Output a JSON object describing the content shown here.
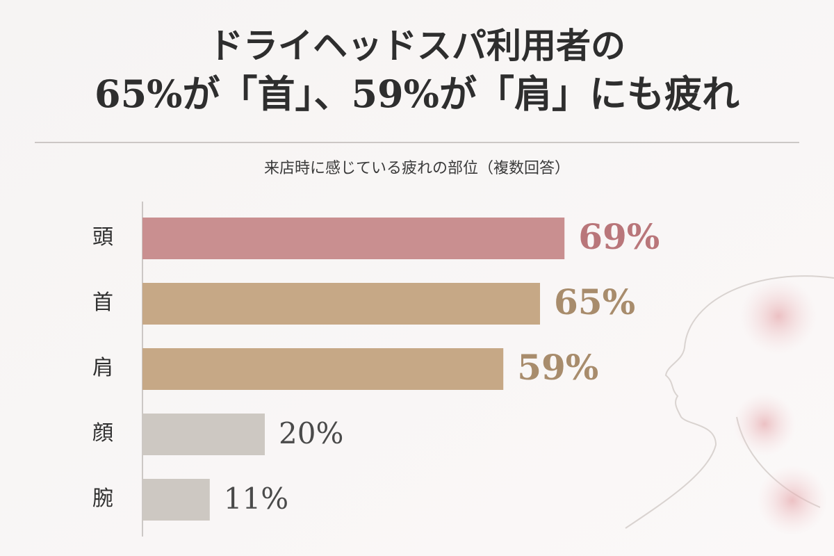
{
  "chart_data": {
    "type": "bar",
    "title": [
      "ドライヘッドスパ利用者の",
      "65%が「首」、59%が「肩」にも疲れ"
    ],
    "subtitle": "来店時に感じている疲れの部位（複数回答）",
    "categories": [
      "頭",
      "首",
      "肩",
      "顔",
      "腕"
    ],
    "values": [
      69,
      65,
      59,
      20,
      11
    ],
    "value_labels": [
      "69%",
      "65%",
      "59%",
      "20%",
      "11%"
    ],
    "colors": [
      "#c98f90",
      "#c6a886",
      "#c6a886",
      "#cdc8c2",
      "#cdc8c2"
    ],
    "label_colors": [
      "#b9767a",
      "#a88c6c",
      "#a88c6c",
      "#4a4a4a",
      "#4a4a4a"
    ]
  }
}
